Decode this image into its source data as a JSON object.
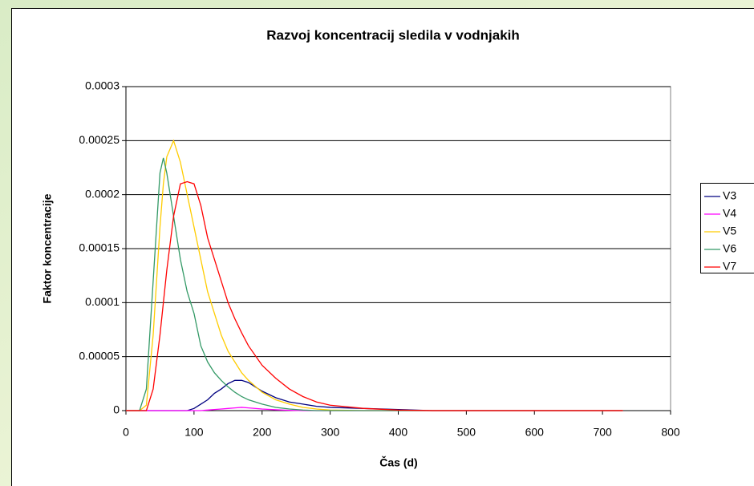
{
  "chart_data": {
    "type": "line",
    "title": "Razvoj koncentracij sledila v vodnjakih",
    "x_label": "Čas (d)",
    "y_label": "Faktor koncentracije",
    "x": [
      0,
      20,
      30,
      40,
      50,
      55,
      60,
      70,
      80,
      90,
      100,
      110,
      120,
      130,
      140,
      150,
      160,
      170,
      180,
      200,
      220,
      240,
      260,
      280,
      300,
      350,
      400,
      450,
      500,
      600,
      730
    ],
    "series": [
      {
        "name": "V3",
        "color": "#000080",
        "values": [
          0,
          0,
          0,
          0,
          0,
          0,
          0,
          0,
          0,
          0,
          2e-06,
          6e-06,
          1e-05,
          1.6e-05,
          2e-05,
          2.5e-05,
          2.8e-05,
          2.8e-05,
          2.6e-05,
          1.8e-05,
          1.2e-05,
          8e-06,
          6e-06,
          4e-06,
          3e-06,
          2e-06,
          1e-06,
          0,
          0,
          0,
          0
        ]
      },
      {
        "name": "V4",
        "color": "#ff00ff",
        "values": [
          0,
          0,
          0,
          0,
          0,
          0,
          0,
          0,
          0,
          0,
          0,
          0,
          5e-07,
          1e-06,
          1.5e-06,
          2e-06,
          2.5e-06,
          3e-06,
          2.5e-06,
          1.5e-06,
          8e-07,
          3e-07,
          0,
          0,
          0,
          0,
          0,
          0,
          0,
          0,
          0
        ]
      },
      {
        "name": "V5",
        "color": "#ffcc00",
        "values": [
          0,
          0,
          5e-06,
          7e-05,
          0.00017,
          0.00021,
          0.000235,
          0.00025,
          0.00023,
          0.0002,
          0.00017,
          0.00014,
          0.00011,
          9e-05,
          7e-05,
          5.5e-05,
          4.5e-05,
          3.5e-05,
          2.8e-05,
          1.7e-05,
          1e-05,
          6e-06,
          3e-06,
          1.5e-06,
          5e-07,
          0,
          0,
          0,
          0,
          0,
          0
        ]
      },
      {
        "name": "V6",
        "color": "#339966",
        "values": [
          0,
          0,
          2e-05,
          0.00012,
          0.00022,
          0.000234,
          0.00022,
          0.00018,
          0.00014,
          0.00011,
          9e-05,
          6e-05,
          4.5e-05,
          3.5e-05,
          2.8e-05,
          2.2e-05,
          1.7e-05,
          1.3e-05,
          1e-05,
          6e-06,
          3e-06,
          1.5e-06,
          5e-07,
          0,
          0,
          0,
          0,
          0,
          0,
          0,
          0
        ]
      },
      {
        "name": "V7",
        "color": "#ff0000",
        "values": [
          0,
          0,
          0,
          2e-05,
          7e-05,
          0.0001,
          0.00013,
          0.00018,
          0.00021,
          0.000212,
          0.00021,
          0.00019,
          0.00016,
          0.00014,
          0.00012,
          0.0001,
          8.5e-05,
          7.2e-05,
          6e-05,
          4.2e-05,
          3e-05,
          2e-05,
          1.3e-05,
          8e-06,
          5e-06,
          2e-06,
          5e-07,
          0,
          0,
          0,
          0
        ]
      }
    ],
    "xlim": [
      0,
      800
    ],
    "xticks": [
      0,
      100,
      200,
      300,
      400,
      500,
      600,
      700,
      800
    ],
    "ylim": [
      0,
      0.0003
    ],
    "yticks": [
      0,
      5e-05,
      0.0001,
      0.00015,
      0.0002,
      0.00025,
      0.0003
    ],
    "grid": true,
    "legend": "right"
  }
}
